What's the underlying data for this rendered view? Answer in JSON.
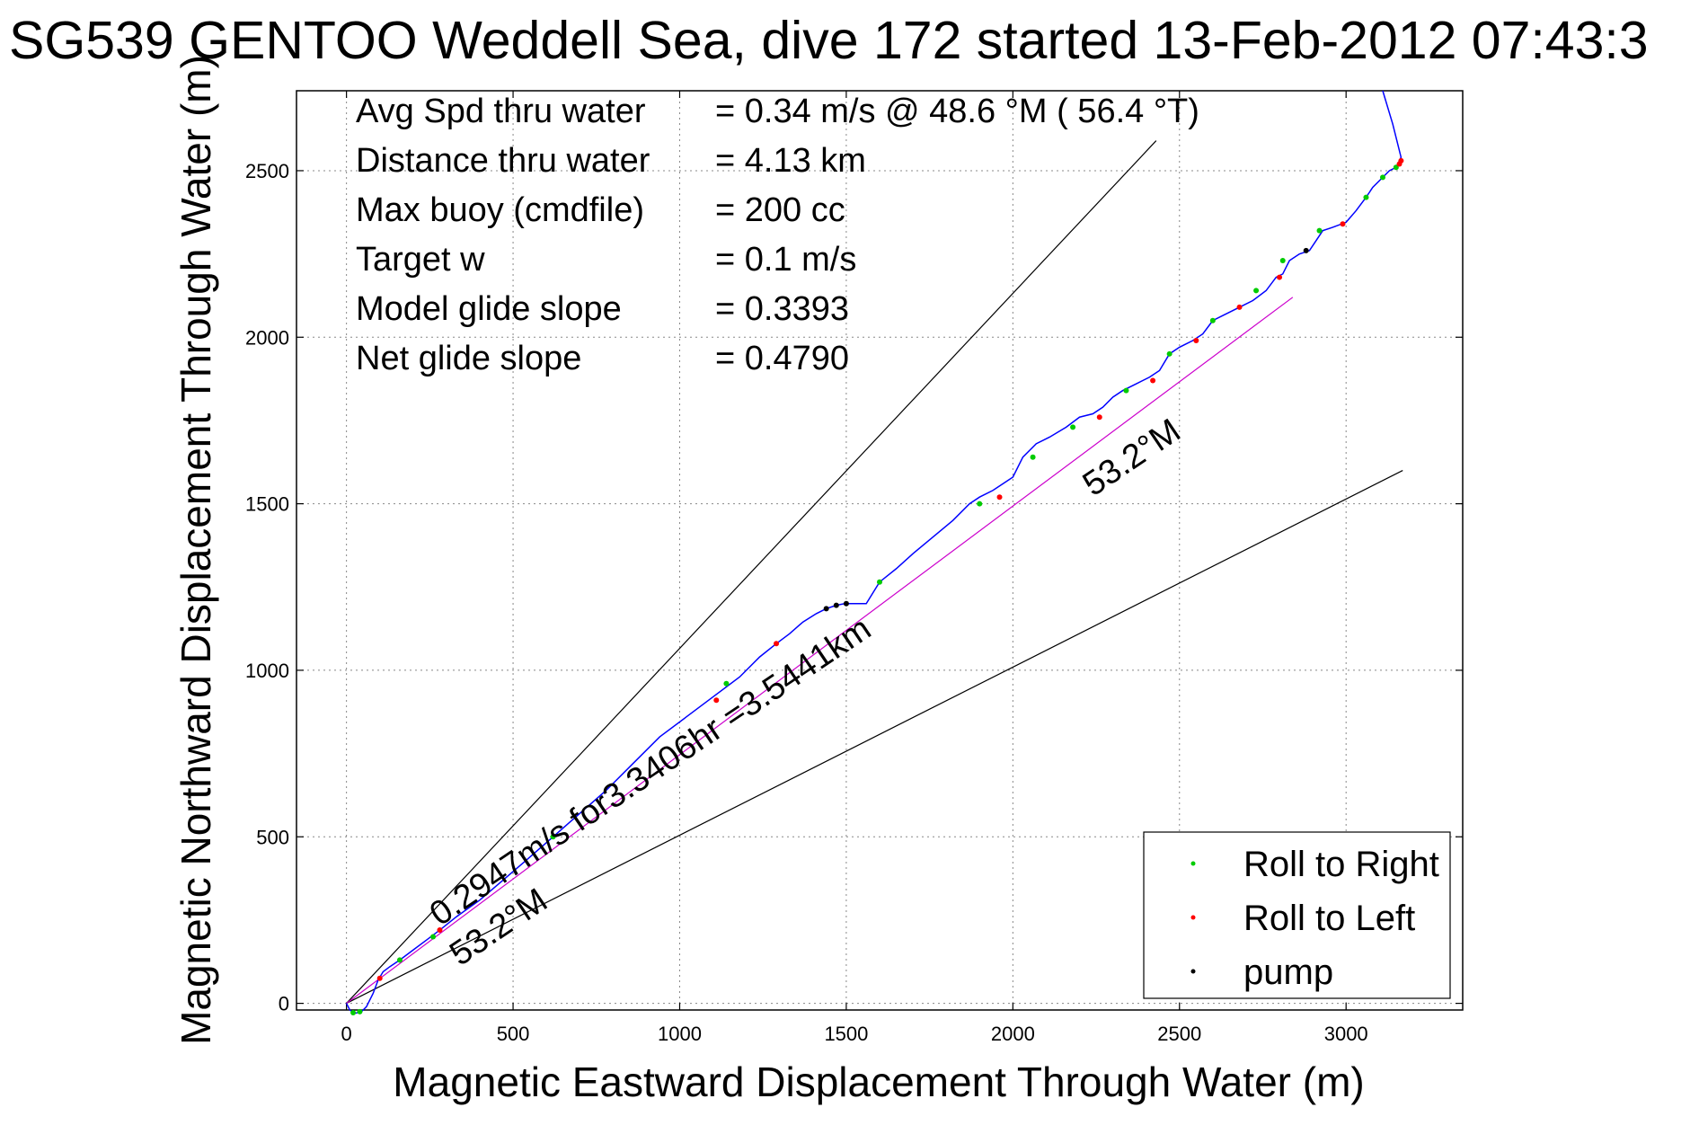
{
  "chart_data": {
    "type": "line",
    "title": "SG539 GENTOO Weddell Sea, dive 172 started 13-Feb-2012 07:43:3",
    "xlabel": "Magnetic Eastward Displacement Through Water (m)",
    "ylabel": "Magnetic Northward Displacement Through Water (m)",
    "xlim": [
      -150,
      3350
    ],
    "ylim": [
      -20,
      2740
    ],
    "xticks": [
      0,
      500,
      1000,
      1500,
      2000,
      2500,
      3000
    ],
    "yticks": [
      0,
      500,
      1000,
      1500,
      2000,
      2500
    ],
    "grid": true,
    "legend_position": "bottom-right",
    "info_text": [
      {
        "label": "Avg Spd thru water",
        "value": "=  0.34 m/s @  48.6 °M ( 56.4 °T)"
      },
      {
        "label": "Distance thru water",
        "value": "=  4.13 km"
      },
      {
        "label": "Max buoy (cmdfile)",
        "value": "= 200 cc"
      },
      {
        "label": "Target w",
        "value": "= 0.1 m/s"
      },
      {
        "label": "Model glide slope",
        "value": "= 0.3393"
      },
      {
        "label": "Net glide slope",
        "value": "= 0.4790"
      }
    ],
    "annotations": [
      {
        "text": "0.2947m/s for3.3406hr =3.5441km",
        "x": 280,
        "y": 230,
        "angle_deg": 34
      },
      {
        "text": "53.2°M",
        "x": 340,
        "y": 110,
        "angle_deg": 34
      },
      {
        "text": "53.2°M",
        "x": 2240,
        "y": 1520,
        "angle_deg": 34
      }
    ],
    "reference_lines": [
      {
        "name": "upper envelope",
        "color": "#000000",
        "x": [
          0,
          2430
        ],
        "y": [
          0,
          2590
        ]
      },
      {
        "name": "lower envelope",
        "color": "#000000",
        "x": [
          0,
          3170
        ],
        "y": [
          0,
          1600
        ]
      },
      {
        "name": "mean heading",
        "color": "#cc00cc",
        "x": [
          0,
          2840
        ],
        "y": [
          0,
          2120
        ]
      }
    ],
    "series": [
      {
        "name": "",
        "color": "#0000ff",
        "x": [
          0,
          10,
          25,
          45,
          60,
          80,
          95,
          110,
          130,
          160,
          200,
          240,
          280,
          330,
          400,
          470,
          540,
          620,
          700,
          780,
          860,
          940,
          1020,
          1100,
          1180,
          1240,
          1290,
          1330,
          1370,
          1410,
          1440,
          1470,
          1495,
          1520,
          1560,
          1600,
          1650,
          1700,
          1760,
          1820,
          1870,
          1900,
          1940,
          1970,
          2000,
          2030,
          2070,
          2110,
          2160,
          2200,
          2240,
          2270,
          2300,
          2330,
          2370,
          2410,
          2440,
          2470,
          2500,
          2540,
          2570,
          2600,
          2640,
          2680,
          2720,
          2760,
          2790,
          2810,
          2830,
          2860,
          2890,
          2910,
          2930,
          2960,
          3000,
          3030,
          3060,
          3080,
          3110,
          3130,
          3150,
          3160,
          3165,
          3140,
          3110
        ],
        "y": [
          0,
          -20,
          -30,
          -25,
          -10,
          30,
          70,
          95,
          110,
          130,
          160,
          190,
          220,
          260,
          310,
          370,
          430,
          500,
          570,
          640,
          720,
          800,
          860,
          920,
          980,
          1040,
          1080,
          1110,
          1145,
          1170,
          1185,
          1195,
          1200,
          1200,
          1200,
          1265,
          1305,
          1350,
          1400,
          1450,
          1500,
          1520,
          1540,
          1560,
          1580,
          1640,
          1680,
          1700,
          1730,
          1760,
          1770,
          1790,
          1820,
          1840,
          1860,
          1880,
          1900,
          1950,
          1970,
          1990,
          2010,
          2050,
          2070,
          2090,
          2110,
          2140,
          2180,
          2190,
          2230,
          2250,
          2260,
          2290,
          2320,
          2330,
          2345,
          2380,
          2420,
          2450,
          2480,
          2500,
          2510,
          2530,
          2540,
          2640,
          2740
        ]
      }
    ],
    "legend": [
      {
        "label": "Roll to Right",
        "color": "#00cc00"
      },
      {
        "label": "Roll to Left",
        "color": "#ff0000"
      },
      {
        "label": "pump",
        "color": "#000000"
      }
    ],
    "markers": {
      "roll_right": {
        "color": "#00cc00",
        "x": [
          20,
          40,
          160,
          260,
          620,
          1140,
          1600,
          1900,
          2060,
          2180,
          2340,
          2470,
          2600,
          2730,
          2810,
          2920,
          3060,
          3110,
          3150
        ],
        "y": [
          -28,
          -25,
          130,
          200,
          500,
          960,
          1265,
          1500,
          1640,
          1730,
          1840,
          1950,
          2050,
          2140,
          2230,
          2320,
          2420,
          2480,
          2510
        ]
      },
      "roll_left": {
        "color": "#ff0000",
        "x": [
          100,
          280,
          1110,
          1290,
          1960,
          2260,
          2420,
          2550,
          2680,
          2800,
          2990,
          3160,
          3165
        ],
        "y": [
          75,
          220,
          910,
          1080,
          1520,
          1760,
          1870,
          1990,
          2090,
          2180,
          2340,
          2520,
          2530
        ]
      },
      "pump": {
        "color": "#000000",
        "x": [
          1440,
          1470,
          1500,
          2880
        ],
        "y": [
          1185,
          1195,
          1200,
          2260
        ]
      }
    }
  }
}
